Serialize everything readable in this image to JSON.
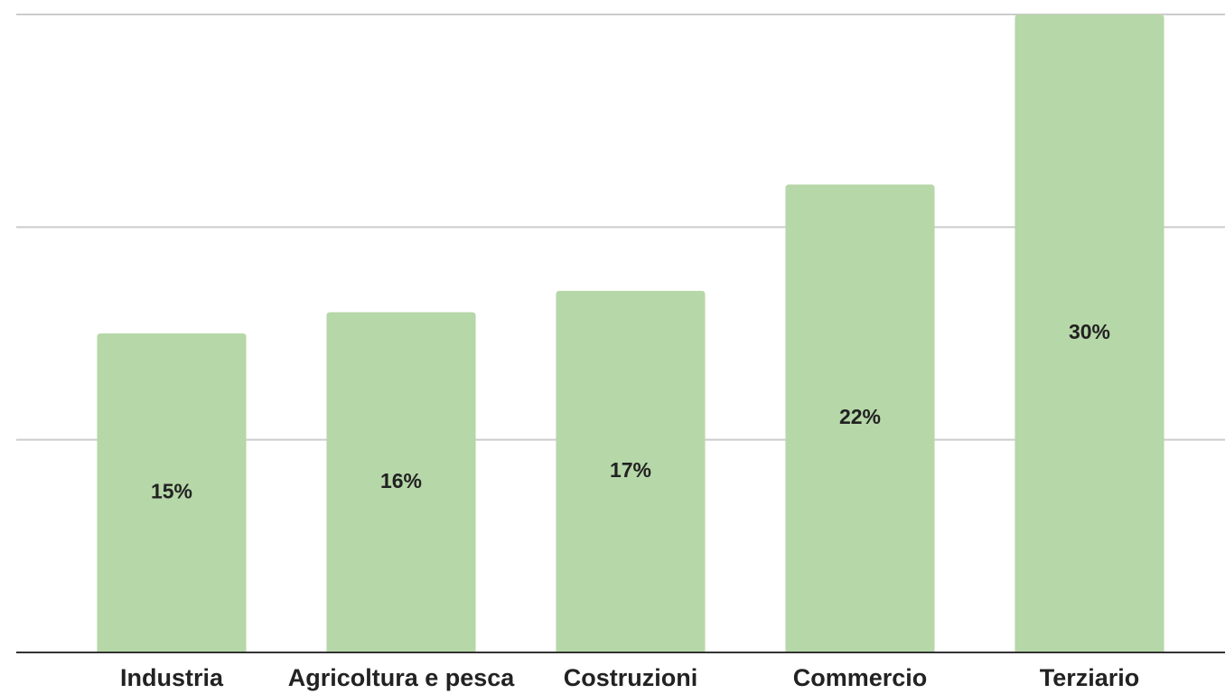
{
  "chart_data": {
    "type": "bar",
    "categories": [
      "Industria",
      "Agricoltura e pesca",
      "Costruzioni",
      "Commercio",
      "Terziario"
    ],
    "values": [
      15,
      16,
      17,
      22,
      30
    ],
    "value_labels": [
      "15%",
      "16%",
      "17%",
      "22%",
      "30%"
    ],
    "color": "#b6d7a8",
    "ylim": [
      0,
      30
    ],
    "yticks": [
      0,
      10,
      20,
      30
    ],
    "grid": true
  }
}
